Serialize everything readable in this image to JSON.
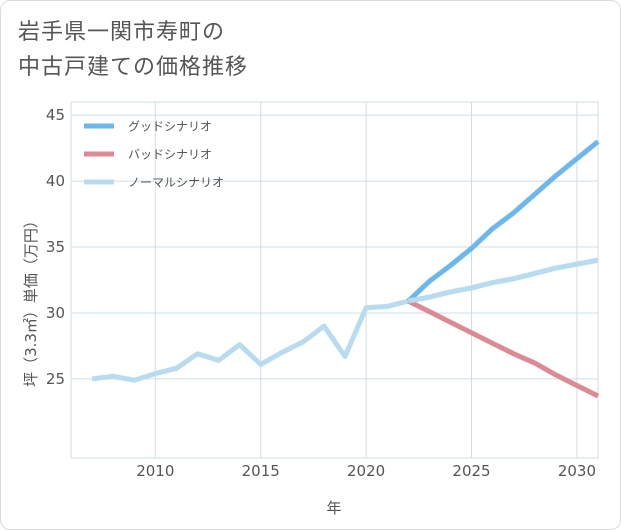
{
  "title_lines": [
    "岩手県一関市寿町の",
    "中古戸建ての価格推移"
  ],
  "chart_data": {
    "type": "line",
    "xlabel": "年",
    "ylabel": "坪（3.3㎡）単価（万円）",
    "xlim": [
      2006,
      2031
    ],
    "ylim": [
      19,
      46
    ],
    "xticks": [
      2010,
      2015,
      2020,
      2025,
      2030
    ],
    "yticks": [
      25,
      30,
      35,
      40,
      45
    ],
    "grid": true,
    "legend_position": "top-left",
    "series": [
      {
        "name": "グッドシナリオ",
        "color": "#6cb8ee",
        "x": [
          2022,
          2023,
          2024,
          2025,
          2026,
          2027,
          2028,
          2029,
          2030,
          2031
        ],
        "y": [
          30.9,
          32.4,
          33.6,
          34.9,
          36.4,
          37.6,
          39.0,
          40.4,
          41.7,
          43.0
        ]
      },
      {
        "name": "バッドシナリオ",
        "color": "#de8a94",
        "x": [
          2022,
          2023,
          2024,
          2025,
          2026,
          2027,
          2028,
          2029,
          2030,
          2031
        ],
        "y": [
          30.9,
          30.1,
          29.3,
          28.5,
          27.7,
          26.9,
          26.2,
          25.3,
          24.5,
          23.7
        ]
      },
      {
        "name": "ノーマルシナリオ",
        "color": "#b8dcef",
        "x": [
          2007,
          2008,
          2009,
          2010,
          2011,
          2012,
          2013,
          2014,
          2015,
          2016,
          2017,
          2018,
          2019,
          2020,
          2021,
          2022,
          2023,
          2024,
          2025,
          2026,
          2027,
          2028,
          2029,
          2030,
          2031
        ],
        "y": [
          25.0,
          25.2,
          24.9,
          25.4,
          25.8,
          26.9,
          26.4,
          27.6,
          26.1,
          27.0,
          27.8,
          29.0,
          26.7,
          30.4,
          30.5,
          30.9,
          31.2,
          31.6,
          31.9,
          32.3,
          32.6,
          33.0,
          33.4,
          33.7,
          34.0
        ]
      }
    ]
  }
}
